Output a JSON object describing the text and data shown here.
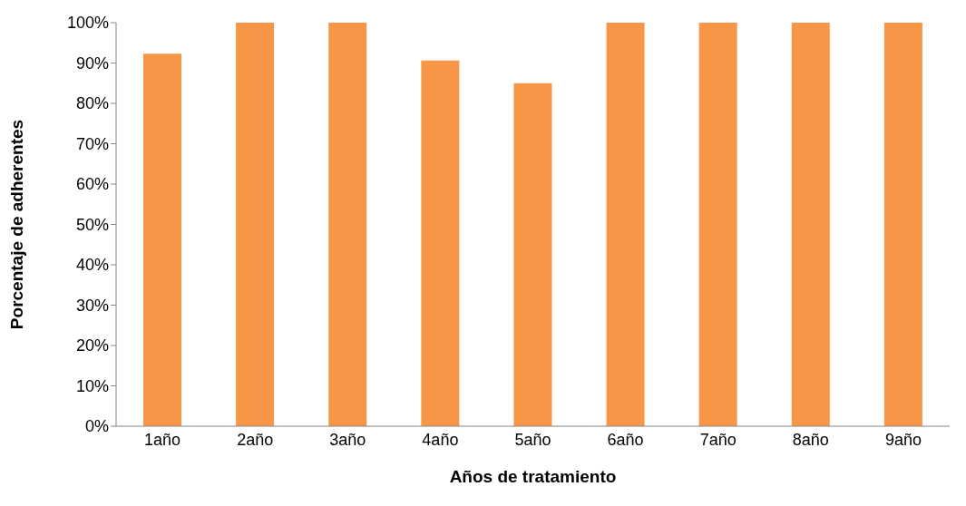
{
  "chart_data": {
    "type": "bar",
    "xlabel": "Años de tratamiento",
    "ylabel": "Porcentaje de adherentes",
    "categories": [
      "1año",
      "2año",
      "3año",
      "4año",
      "5año",
      "6año",
      "7año",
      "8año",
      "9año"
    ],
    "values": [
      92.3,
      100,
      100,
      90.6,
      85,
      100,
      100,
      100,
      100
    ],
    "color": "#f79646",
    "ylim": [
      0,
      100
    ],
    "yticks": [
      {
        "value": 0,
        "label": "0%"
      },
      {
        "value": 10,
        "label": "10%"
      },
      {
        "value": 20,
        "label": "20%"
      },
      {
        "value": 30,
        "label": "30%"
      },
      {
        "value": 40,
        "label": "40%"
      },
      {
        "value": 50,
        "label": "50%"
      },
      {
        "value": 60,
        "label": "60%"
      },
      {
        "value": 70,
        "label": "70%"
      },
      {
        "value": 80,
        "label": "80%"
      },
      {
        "value": 90,
        "label": "90%"
      },
      {
        "value": 100,
        "label": "100%"
      }
    ],
    "grid": false
  }
}
